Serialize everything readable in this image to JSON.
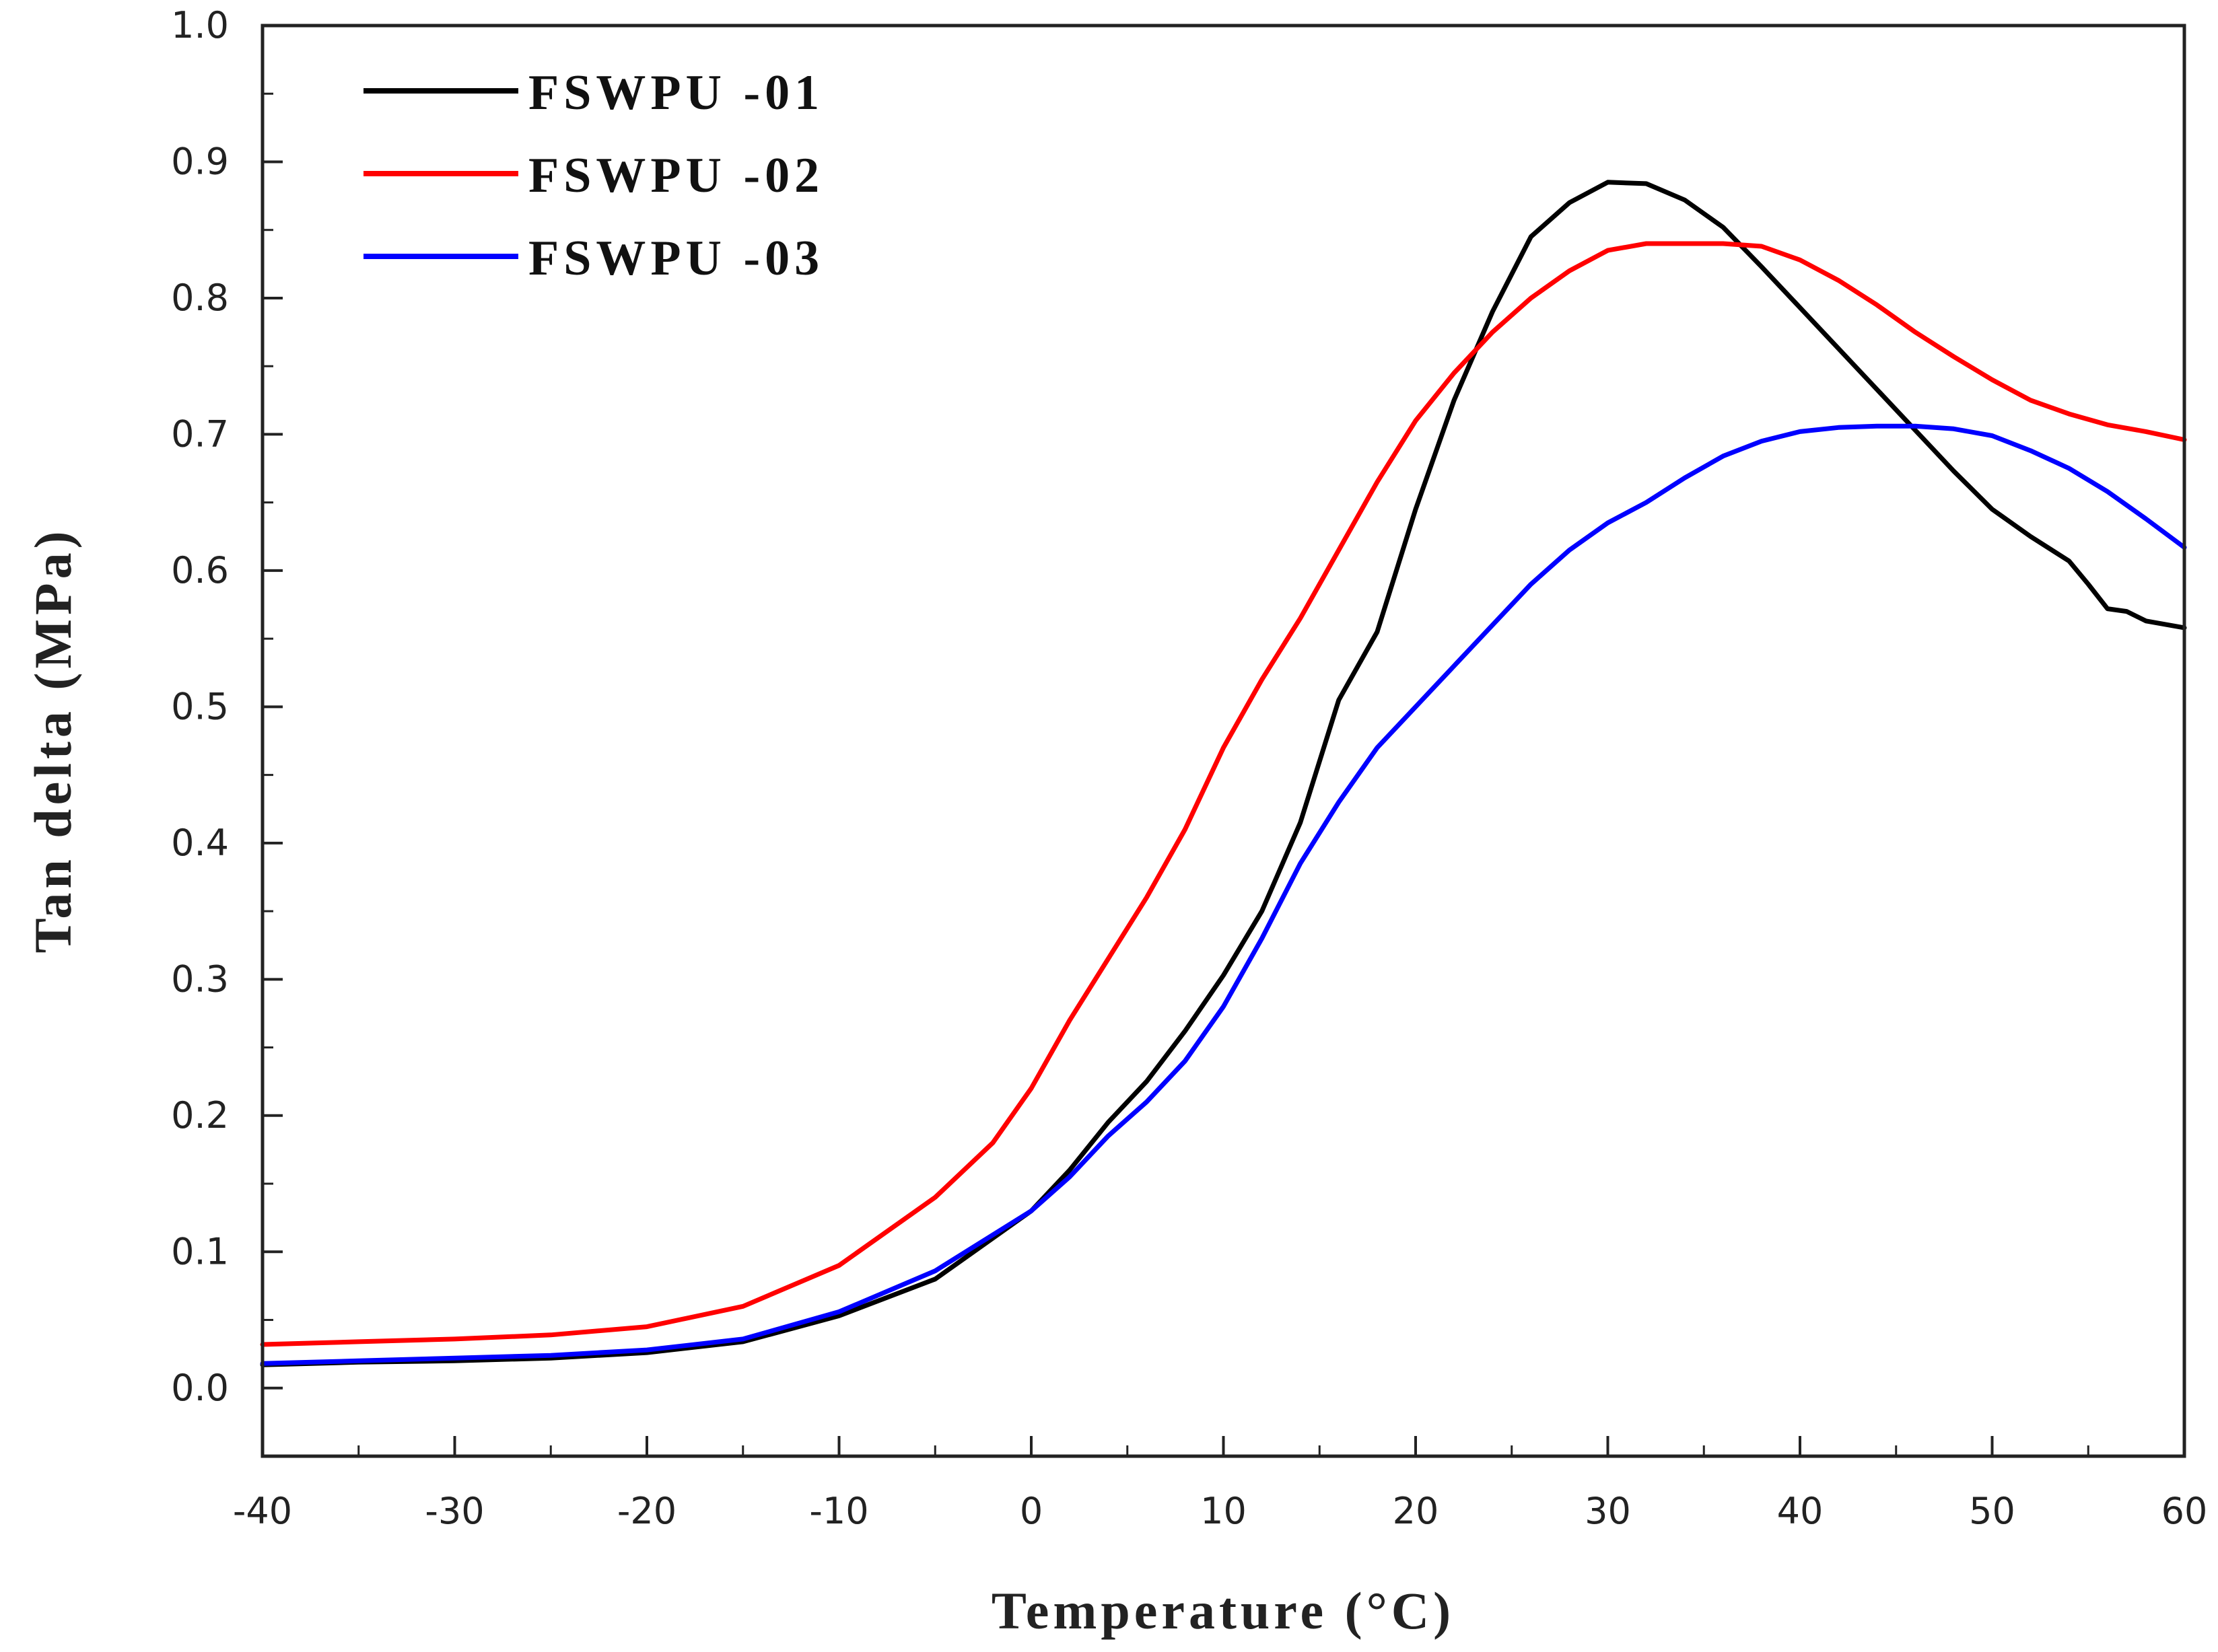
{
  "chart_data": {
    "type": "line",
    "title": "",
    "xlabel": "Temperature (°C)",
    "ylabel": "Tan delta (MPa)",
    "xlim": [
      -40,
      60
    ],
    "ylim": [
      -0.05,
      1.0
    ],
    "xticks": [
      -40,
      -30,
      -20,
      -10,
      0,
      10,
      20,
      30,
      40,
      50,
      60
    ],
    "yticks": [
      0.0,
      0.1,
      0.2,
      0.3,
      0.4,
      0.5,
      0.6,
      0.7,
      0.8,
      0.9,
      1.0
    ],
    "xtick_labels": [
      "-40",
      "-30",
      "-20",
      "-10",
      "0",
      "10",
      "20",
      "30",
      "40",
      "50",
      "60"
    ],
    "ytick_labels": [
      "0.0",
      "0.1",
      "0.2",
      "0.3",
      "0.4",
      "0.5",
      "0.6",
      "0.7",
      "0.8",
      "0.9",
      "1.0"
    ],
    "grid": false,
    "legend_position": "top-left",
    "series": [
      {
        "name": "FSWPU -01",
        "color": "#000000",
        "x": [
          -40,
          -35,
          -30,
          -25,
          -20,
          -15,
          -10,
          -5,
          0,
          2,
          4,
          6,
          8,
          10,
          12,
          14,
          16,
          18,
          20,
          22,
          24,
          26,
          28,
          30,
          32,
          34,
          36,
          38,
          40,
          42,
          44,
          46,
          48,
          50,
          52,
          54,
          55,
          56,
          57,
          58,
          60
        ],
        "y": [
          0.017,
          0.019,
          0.02,
          0.022,
          0.026,
          0.034,
          0.053,
          0.08,
          0.13,
          0.16,
          0.195,
          0.225,
          0.262,
          0.303,
          0.35,
          0.415,
          0.505,
          0.555,
          0.645,
          0.725,
          0.79,
          0.845,
          0.87,
          0.885,
          0.884,
          0.872,
          0.852,
          0.823,
          0.793,
          0.763,
          0.733,
          0.703,
          0.673,
          0.645,
          0.625,
          0.607,
          0.59,
          0.572,
          0.57,
          0.563,
          0.558
        ]
      },
      {
        "name": "FSWPU -02",
        "color": "#ff0000",
        "x": [
          -40,
          -35,
          -30,
          -25,
          -20,
          -15,
          -10,
          -5,
          -2,
          0,
          2,
          4,
          6,
          8,
          10,
          12,
          14,
          16,
          18,
          20,
          22,
          24,
          26,
          28,
          30,
          32,
          34,
          36,
          38,
          40,
          42,
          44,
          46,
          48,
          50,
          52,
          54,
          56,
          58,
          60
        ],
        "y": [
          0.032,
          0.034,
          0.036,
          0.039,
          0.045,
          0.06,
          0.09,
          0.14,
          0.18,
          0.22,
          0.27,
          0.315,
          0.36,
          0.41,
          0.47,
          0.52,
          0.565,
          0.615,
          0.665,
          0.71,
          0.745,
          0.775,
          0.8,
          0.82,
          0.835,
          0.84,
          0.84,
          0.84,
          0.838,
          0.828,
          0.813,
          0.795,
          0.775,
          0.757,
          0.74,
          0.725,
          0.715,
          0.707,
          0.702,
          0.696
        ]
      },
      {
        "name": "FSWPU -03",
        "color": "#0000ff",
        "x": [
          -40,
          -35,
          -30,
          -25,
          -20,
          -15,
          -10,
          -5,
          0,
          2,
          4,
          6,
          8,
          10,
          12,
          14,
          16,
          18,
          20,
          22,
          24,
          26,
          28,
          30,
          32,
          34,
          36,
          38,
          40,
          42,
          44,
          46,
          48,
          50,
          52,
          54,
          56,
          58,
          60
        ],
        "y": [
          0.018,
          0.02,
          0.022,
          0.024,
          0.028,
          0.036,
          0.056,
          0.086,
          0.13,
          0.155,
          0.185,
          0.21,
          0.24,
          0.28,
          0.33,
          0.385,
          0.43,
          0.47,
          0.5,
          0.53,
          0.56,
          0.59,
          0.615,
          0.635,
          0.65,
          0.668,
          0.684,
          0.695,
          0.702,
          0.705,
          0.706,
          0.706,
          0.704,
          0.699,
          0.688,
          0.675,
          0.658,
          0.638,
          0.617
        ]
      }
    ]
  }
}
